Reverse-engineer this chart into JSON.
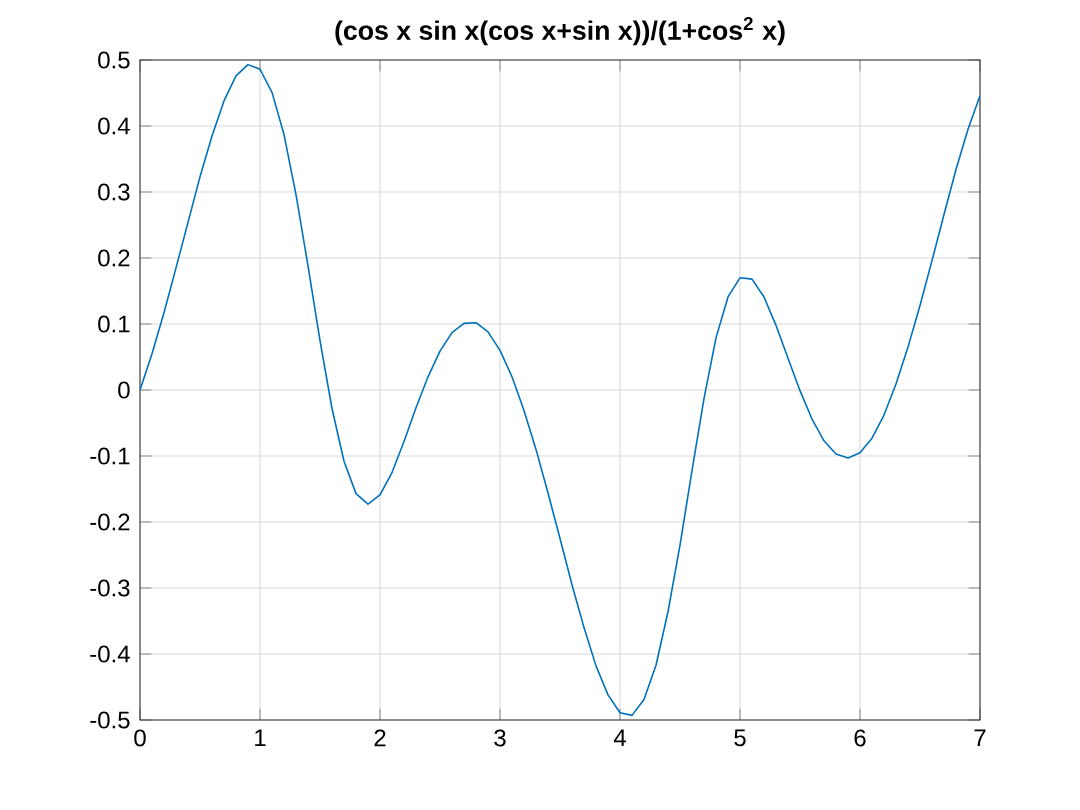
{
  "chart_data": {
    "type": "line",
    "title": "(cos x sin x(cos x+sin x))/(1+cos$^{2}$ x)",
    "x": [
      0,
      0.1,
      0.2,
      0.3,
      0.4,
      0.5,
      0.6,
      0.7,
      0.8,
      0.9,
      1.0,
      1.1,
      1.2,
      1.3,
      1.4,
      1.5,
      1.6,
      1.7,
      1.8,
      1.9,
      2.0,
      2.1,
      2.2,
      2.3,
      2.4,
      2.5,
      2.6,
      2.7,
      2.8,
      2.9,
      3.0,
      3.1,
      3.2,
      3.3,
      3.4,
      3.5,
      3.6,
      3.7,
      3.8,
      3.9,
      4.0,
      4.1,
      4.2,
      4.3,
      4.4,
      4.5,
      4.6,
      4.7,
      4.8,
      4.9,
      5.0,
      5.1,
      5.2,
      5.3,
      5.4,
      5.5,
      5.6,
      5.7,
      5.8,
      5.9,
      6.0,
      6.1,
      6.2,
      6.3,
      6.4,
      6.5,
      6.6,
      6.7,
      6.8,
      6.9,
      7.0
    ],
    "series": [
      {
        "color": "#0072bd",
        "values": [
          0,
          0.055,
          0.117,
          0.185,
          0.254,
          0.323,
          0.385,
          0.438,
          0.476,
          0.493,
          0.486,
          0.451,
          0.387,
          0.296,
          0.188,
          0.075,
          -0.028,
          -0.108,
          -0.157,
          -0.173,
          -0.159,
          -0.125,
          -0.078,
          -0.027,
          0.02,
          0.059,
          0.087,
          0.101,
          0.102,
          0.088,
          0.06,
          0.02,
          -0.031,
          -0.09,
          -0.156,
          -0.225,
          -0.295,
          -0.36,
          -0.418,
          -0.462,
          -0.489,
          -0.493,
          -0.469,
          -0.417,
          -0.336,
          -0.235,
          -0.122,
          -0.013,
          0.079,
          0.141,
          0.17,
          0.168,
          0.141,
          0.098,
          0.048,
          -0.001,
          -0.044,
          -0.077,
          -0.097,
          -0.103,
          -0.095,
          -0.073,
          -0.038,
          0.009,
          0.065,
          0.128,
          0.196,
          0.266,
          0.334,
          0.395,
          0.446
        ]
      }
    ],
    "xlim": [
      0,
      7
    ],
    "ylim": [
      -0.5,
      0.5
    ],
    "xticks": [
      0,
      1,
      2,
      3,
      4,
      5,
      6,
      7
    ],
    "yticks": [
      -0.5,
      -0.4,
      -0.3,
      -0.2,
      -0.1,
      0,
      0.1,
      0.2,
      0.3,
      0.4,
      0.5
    ],
    "grid": true,
    "line_style": "solid",
    "marker": "none"
  }
}
